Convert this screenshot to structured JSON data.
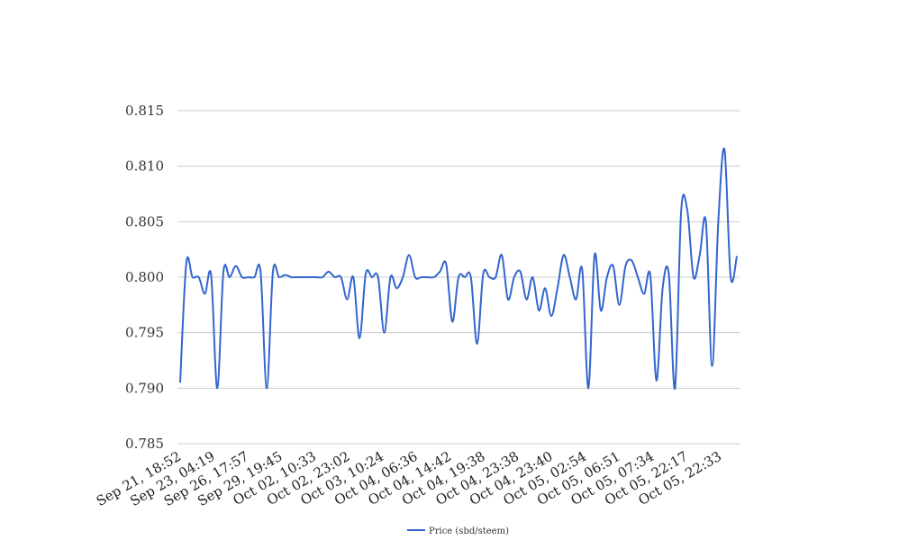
{
  "chart_data": {
    "type": "line",
    "title": "",
    "xlabel": "",
    "ylabel": "",
    "ylim": [
      0.785,
      0.815
    ],
    "yticks": [
      0.785,
      0.79,
      0.795,
      0.8,
      0.805,
      0.81,
      0.815
    ],
    "ytick_labels": [
      "0.785",
      "0.790",
      "0.795",
      "0.800",
      "0.805",
      "0.810",
      "0.815"
    ],
    "grid": "horizontal",
    "legend_position": "bottom",
    "xtick_labels": [
      "Sep 21, 18:52",
      "Sep 23, 04:19",
      "Sep 26, 17:57",
      "Sep 29, 19:45",
      "Oct 02, 10:33",
      "Oct 02, 23:02",
      "Oct 03, 10:24",
      "Oct 04, 06:36",
      "Oct 04, 14:42",
      "Oct 04, 19:38",
      "Oct 04, 23:38",
      "Oct 04, 23:40",
      "Oct 05, 02:54",
      "Oct 05, 06:51",
      "Oct 05, 07:34",
      "Oct 05, 22:17",
      "Oct 05, 22:33"
    ],
    "series": [
      {
        "name": "Price (sbd/steem)",
        "color": "#3366cc",
        "values": [
          0.7905,
          0.8013,
          0.8,
          0.8,
          0.7985,
          0.8002,
          0.79,
          0.8005,
          0.8,
          0.801,
          0.8,
          0.8,
          0.8,
          0.8005,
          0.79,
          0.8005,
          0.8,
          0.8002,
          0.8,
          0.8,
          0.8,
          0.8,
          0.8,
          0.8,
          0.8005,
          0.8,
          0.8,
          0.798,
          0.8,
          0.7945,
          0.8003,
          0.8,
          0.8,
          0.795,
          0.8,
          0.799,
          0.8,
          0.802,
          0.8,
          0.8,
          0.8,
          0.8,
          0.8005,
          0.8012,
          0.796,
          0.8,
          0.8,
          0.8,
          0.794,
          0.8003,
          0.8,
          0.8,
          0.802,
          0.798,
          0.8,
          0.8005,
          0.798,
          0.8,
          0.797,
          0.799,
          0.7965,
          0.799,
          0.802,
          0.8,
          0.798,
          0.8007,
          0.79,
          0.802,
          0.797,
          0.8,
          0.801,
          0.7975,
          0.801,
          0.8015,
          0.8,
          0.7985,
          0.8002,
          0.7907,
          0.799,
          0.8003,
          0.79,
          0.806,
          0.806,
          0.8,
          0.802,
          0.805,
          0.792,
          0.805,
          0.8115,
          0.8,
          0.8019
        ]
      }
    ]
  }
}
